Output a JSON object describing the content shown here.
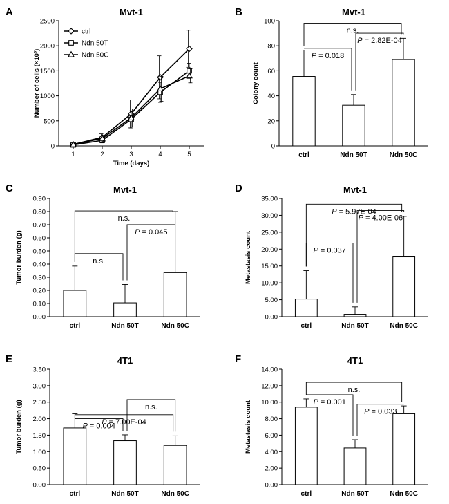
{
  "figure": {
    "panels": [
      "A",
      "B",
      "C",
      "D",
      "E",
      "F"
    ]
  },
  "chart_data": [
    {
      "panel": "A",
      "type": "line",
      "title": "Mvt-1",
      "xlabel": "Time (days)",
      "ylabel": "Number of cells (×10³)",
      "x": [
        1,
        2,
        3,
        4,
        5
      ],
      "ylim": [
        0,
        2500
      ],
      "yticks": [
        "0",
        "500",
        "1000",
        "1500",
        "2000",
        "2500"
      ],
      "xticks": [
        "1",
        "2",
        "3",
        "4",
        "5"
      ],
      "legend": "top-left",
      "series": [
        {
          "name": "ctrl",
          "marker": "diamond",
          "values": [
            30,
            170,
            640,
            1370,
            1940
          ],
          "errors": [
            20,
            70,
            280,
            430,
            370
          ]
        },
        {
          "name": "Ndn 50T",
          "marker": "square",
          "values": [
            20,
            110,
            530,
            1070,
            1500
          ],
          "errors": [
            15,
            50,
            170,
            200,
            150
          ]
        },
        {
          "name": "Ndn 50C",
          "marker": "triangle",
          "values": [
            25,
            150,
            560,
            1140,
            1400
          ],
          "errors": [
            15,
            60,
            180,
            250,
            140
          ]
        }
      ]
    },
    {
      "panel": "B",
      "type": "bar",
      "title": "Mvt-1",
      "xlabel": "",
      "ylabel": "Colony count",
      "categories": [
        "ctrl",
        "Ndn 50T",
        "Ndn 50C"
      ],
      "values": [
        55.5,
        32.5,
        69.0
      ],
      "errors": [
        21.0,
        8.5,
        17.0
      ],
      "ylim": [
        0,
        100
      ],
      "yticks": [
        "0",
        "20",
        "40",
        "60",
        "80",
        "100"
      ],
      "annotations": [
        {
          "text": "n.s.",
          "from": 0,
          "to": 2,
          "level": 98
        },
        {
          "text": "P = 0.018",
          "from": 0,
          "to": 1,
          "level": 78
        },
        {
          "text": "P = 2.82E-04",
          "from": 1,
          "to": 2,
          "level": 90
        }
      ]
    },
    {
      "panel": "C",
      "type": "bar",
      "title": "Mvt-1",
      "xlabel": "",
      "ylabel": "Tumor burden (g)",
      "categories": [
        "ctrl",
        "Ndn 50T",
        "Ndn 50C"
      ],
      "values": [
        0.2,
        0.105,
        0.335
      ],
      "errors": [
        0.185,
        0.14,
        0.465
      ],
      "ylim": [
        0,
        0.9
      ],
      "yticks": [
        "0.00",
        "0.10",
        "0.20",
        "0.30",
        "0.40",
        "0.50",
        "0.60",
        "0.70",
        "0.80",
        "0.90"
      ],
      "annotations": [
        {
          "text": "n.s.",
          "from": 0,
          "to": 2,
          "level": 0.805
        },
        {
          "text": "n.s.",
          "from": 0,
          "to": 1,
          "level": 0.48
        },
        {
          "text": "P = 0.045",
          "from": 1,
          "to": 2,
          "level": 0.7
        }
      ]
    },
    {
      "panel": "D",
      "type": "bar",
      "title": "Mvt-1",
      "xlabel": "",
      "ylabel": "Metastasis count",
      "categories": [
        "ctrl",
        "Ndn 50T",
        "Ndn 50C"
      ],
      "values": [
        5.2,
        0.7,
        17.7
      ],
      "errors": [
        8.4,
        2.2,
        12.0
      ],
      "ylim": [
        0,
        35
      ],
      "yticks": [
        "0.00",
        "5.00",
        "10.00",
        "15.00",
        "20.00",
        "25.00",
        "30.00",
        "35.00"
      ],
      "annotations": [
        {
          "text": "P = 5.97E-04",
          "from": 0,
          "to": 2,
          "level": 33.3
        },
        {
          "text": "P = 0.037",
          "from": 0,
          "to": 1,
          "level": 21.8
        },
        {
          "text": "P = 4.00E-06",
          "from": 1,
          "to": 2,
          "level": 31.4
        }
      ]
    },
    {
      "panel": "E",
      "type": "bar",
      "title": "4T1",
      "xlabel": "",
      "ylabel": "Tumor burden (g)",
      "categories": [
        "ctrl",
        "Ndn 50T",
        "Ndn 50C"
      ],
      "values": [
        1.72,
        1.33,
        1.19
      ],
      "errors": [
        0.43,
        0.18,
        0.29
      ],
      "ylim": [
        0,
        3.5
      ],
      "yticks": [
        "0.00",
        "0.50",
        "1.00",
        "1.50",
        "2.00",
        "2.50",
        "3.00",
        "3.50"
      ],
      "annotations": [
        {
          "text": "n.s.",
          "from": 1,
          "to": 2,
          "level": 2.58
        },
        {
          "text": "P = 0.004",
          "from": 0,
          "to": 1,
          "level": 2.0
        },
        {
          "text": "P = 7.00E-04",
          "from": 0,
          "to": 2,
          "level": 2.12
        }
      ]
    },
    {
      "panel": "F",
      "type": "bar",
      "title": "4T1",
      "xlabel": "",
      "ylabel": "Metastasis count",
      "categories": [
        "ctrl",
        "Ndn 50T",
        "Ndn 50C"
      ],
      "values": [
        9.4,
        4.45,
        8.6
      ],
      "errors": [
        1.0,
        1.0,
        0.95
      ],
      "ylim": [
        0,
        14
      ],
      "yticks": [
        "0.00",
        "2.00",
        "4.00",
        "6.00",
        "8.00",
        "10.00",
        "12.00",
        "14.00"
      ],
      "annotations": [
        {
          "text": "n.s.",
          "from": 0,
          "to": 2,
          "level": 12.4
        },
        {
          "text": "P = 0.001",
          "from": 0,
          "to": 1,
          "level": 10.9
        },
        {
          "text": "P = 0.033",
          "from": 1,
          "to": 2,
          "level": 9.75
        }
      ]
    }
  ]
}
